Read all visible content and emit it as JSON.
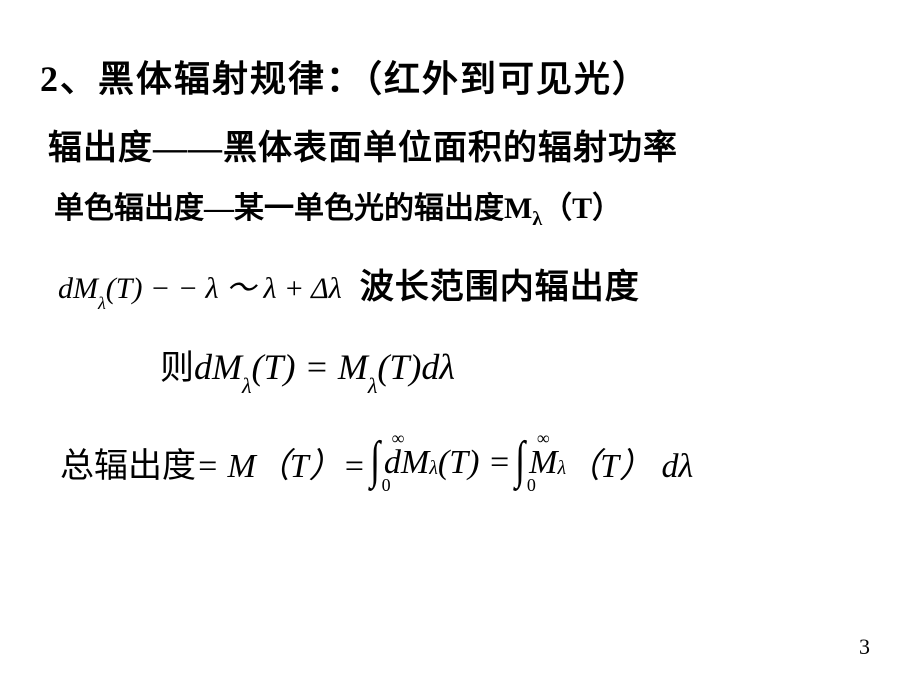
{
  "slide": {
    "line1": "2、黑体辐射规律：（红外到可见光）",
    "line2": "辐出度——黑体表面单位面积的辐射功率",
    "line3_pre": "单色辐出度—某一单色光的辐出度M",
    "line3_sub": "λ",
    "line3_post": "（T）",
    "line4_math": "dM",
    "line4_sub1": "λ",
    "line4_math2": "(T) − − λ ～ λ + Δλ",
    "line4_text": "波长范围内辐出度",
    "line5_text": "则",
    "line5_m1": "dM",
    "line5_s1": "λ",
    "line5_m2": "(T) = M",
    "line5_s2": "λ",
    "line5_m3": "(T)dλ",
    "line6_text": "总辐出度",
    "line6_eq": "= M（T）=",
    "line6_int_up": "∞",
    "line6_int_low": "0",
    "line6_m1": "dM",
    "line6_s1": "λ",
    "line6_m2": "(T) =",
    "line6_m3": "M",
    "line6_s3": "λ",
    "line6_m4": "（T） dλ",
    "pagenum": "3"
  },
  "style": {
    "bg": "#ffffff",
    "text": "#000000",
    "title_fontsize": 36,
    "body_fontsize": 34,
    "math_fontsize": 34
  }
}
